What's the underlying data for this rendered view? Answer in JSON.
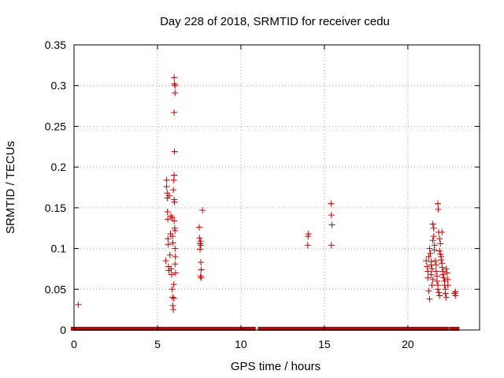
{
  "chart_data": {
    "type": "scatter",
    "title": "Day 228 of 2018, SRMTID for receiver cedu",
    "xlabel": "GPS time / hours",
    "ylabel": "SRMTID / TECUs",
    "xlim": [
      0,
      24.3
    ],
    "ylim": [
      0,
      0.35
    ],
    "xticks": [
      0,
      5,
      10,
      15,
      20
    ],
    "xtick_labels": [
      "0",
      "5",
      "10",
      "15",
      "20"
    ],
    "yticks": [
      0,
      0.05,
      0.1,
      0.15,
      0.2,
      0.25,
      0.3,
      0.35
    ],
    "ytick_labels": [
      "0",
      "0.05",
      "0.1",
      "0.15",
      "0.2",
      "0.25",
      "0.3",
      "0.35"
    ],
    "grid": true,
    "marker": "+",
    "color": "#cc0000",
    "series": [
      {
        "name": "SRMTID",
        "baseline": {
          "value": 0,
          "segments": [
            [
              0,
              5.3
            ],
            [
              5.6,
              7.4
            ],
            [
              7.6,
              9.6
            ],
            [
              9.8,
              10.7
            ],
            [
              11.2,
              11.6
            ],
            [
              11.9,
              13.6
            ],
            [
              13.8,
              14.6
            ],
            [
              14.8,
              20.2
            ],
            [
              20.4,
              21.1
            ],
            [
              21.4,
              22.0
            ],
            [
              22.2,
              22.3
            ],
            [
              22.7,
              22.9
            ]
          ]
        },
        "points": [
          [
            0.25,
            0.031
          ],
          [
            5.5,
            0.085
          ],
          [
            5.55,
            0.184
          ],
          [
            5.55,
            0.176
          ],
          [
            5.58,
            0.168
          ],
          [
            5.6,
            0.162
          ],
          [
            5.6,
            0.145
          ],
          [
            5.62,
            0.136
          ],
          [
            5.63,
            0.112
          ],
          [
            5.65,
            0.105
          ],
          [
            5.66,
            0.078
          ],
          [
            5.68,
            0.073
          ],
          [
            5.7,
            0.165
          ],
          [
            5.75,
            0.092
          ],
          [
            5.78,
            0.118
          ],
          [
            5.8,
            0.14
          ],
          [
            5.82,
            0.075
          ],
          [
            5.85,
            0.068
          ],
          [
            5.88,
            0.05
          ],
          [
            5.9,
            0.04
          ],
          [
            5.92,
            0.03
          ],
          [
            5.95,
            0.025
          ],
          [
            5.95,
            0.172
          ],
          [
            5.98,
            0.184
          ],
          [
            6.0,
            0.19
          ],
          [
            6.0,
            0.16
          ],
          [
            6.02,
            0.157
          ],
          [
            6.0,
            0.134
          ],
          [
            6.03,
            0.125
          ],
          [
            6.05,
            0.122
          ],
          [
            6.05,
            0.1
          ],
          [
            6.07,
            0.09
          ],
          [
            6.05,
            0.081
          ],
          [
            6.08,
            0.07
          ],
          [
            5.98,
            0.039
          ],
          [
            5.98,
            0.056
          ],
          [
            5.92,
            0.107
          ],
          [
            5.9,
            0.115
          ],
          [
            5.88,
            0.138
          ],
          [
            6.0,
            0.31
          ],
          [
            6.02,
            0.302
          ],
          [
            6.05,
            0.3
          ],
          [
            6.05,
            0.291
          ],
          [
            6.0,
            0.267
          ],
          [
            6.02,
            0.219
          ],
          [
            7.5,
            0.126
          ],
          [
            7.52,
            0.113
          ],
          [
            7.55,
            0.106
          ],
          [
            7.58,
            0.109
          ],
          [
            7.6,
            0.104
          ],
          [
            7.55,
            0.099
          ],
          [
            7.6,
            0.083
          ],
          [
            7.62,
            0.074
          ],
          [
            7.58,
            0.066
          ],
          [
            7.62,
            0.064
          ],
          [
            7.7,
            0.147
          ],
          [
            14.0,
            0.104
          ],
          [
            14.02,
            0.115
          ],
          [
            14.05,
            0.118
          ],
          [
            15.4,
            0.155
          ],
          [
            15.42,
            0.141
          ],
          [
            15.45,
            0.129
          ],
          [
            15.42,
            0.104
          ],
          [
            21.1,
            0.085
          ],
          [
            21.15,
            0.078
          ],
          [
            21.2,
            0.072
          ],
          [
            21.2,
            0.064
          ],
          [
            21.25,
            0.048
          ],
          [
            21.3,
            0.038
          ],
          [
            21.3,
            0.1
          ],
          [
            21.35,
            0.094
          ],
          [
            21.25,
            0.09
          ],
          [
            21.4,
            0.084
          ],
          [
            21.4,
            0.08
          ],
          [
            21.45,
            0.075
          ],
          [
            21.4,
            0.068
          ],
          [
            21.5,
            0.062
          ],
          [
            21.45,
            0.055
          ],
          [
            21.5,
            0.11
          ],
          [
            21.55,
            0.115
          ],
          [
            21.5,
            0.13
          ],
          [
            21.55,
            0.125
          ],
          [
            21.6,
            0.104
          ],
          [
            21.6,
            0.098
          ],
          [
            21.65,
            0.085
          ],
          [
            21.7,
            0.08
          ],
          [
            21.7,
            0.072
          ],
          [
            21.75,
            0.066
          ],
          [
            21.75,
            0.06
          ],
          [
            21.8,
            0.055
          ],
          [
            21.8,
            0.05
          ],
          [
            21.85,
            0.046
          ],
          [
            21.9,
            0.042
          ],
          [
            21.8,
            0.155
          ],
          [
            21.82,
            0.148
          ],
          [
            21.85,
            0.12
          ],
          [
            21.9,
            0.112
          ],
          [
            21.95,
            0.106
          ],
          [
            21.9,
            0.097
          ],
          [
            21.95,
            0.093
          ],
          [
            22.0,
            0.09
          ],
          [
            22.0,
            0.086
          ],
          [
            22.05,
            0.082
          ],
          [
            22.05,
            0.077
          ],
          [
            22.1,
            0.072
          ],
          [
            22.1,
            0.068
          ],
          [
            22.15,
            0.064
          ],
          [
            22.2,
            0.06
          ],
          [
            22.2,
            0.055
          ],
          [
            22.25,
            0.05
          ],
          [
            22.25,
            0.045
          ],
          [
            22.3,
            0.04
          ],
          [
            22.3,
            0.075
          ],
          [
            22.35,
            0.07
          ],
          [
            22.4,
            0.062
          ],
          [
            22.4,
            0.055
          ],
          [
            22.05,
            0.12
          ],
          [
            22.8,
            0.045
          ],
          [
            22.85,
            0.042
          ],
          [
            22.85,
            0.047
          ]
        ]
      }
    ]
  }
}
